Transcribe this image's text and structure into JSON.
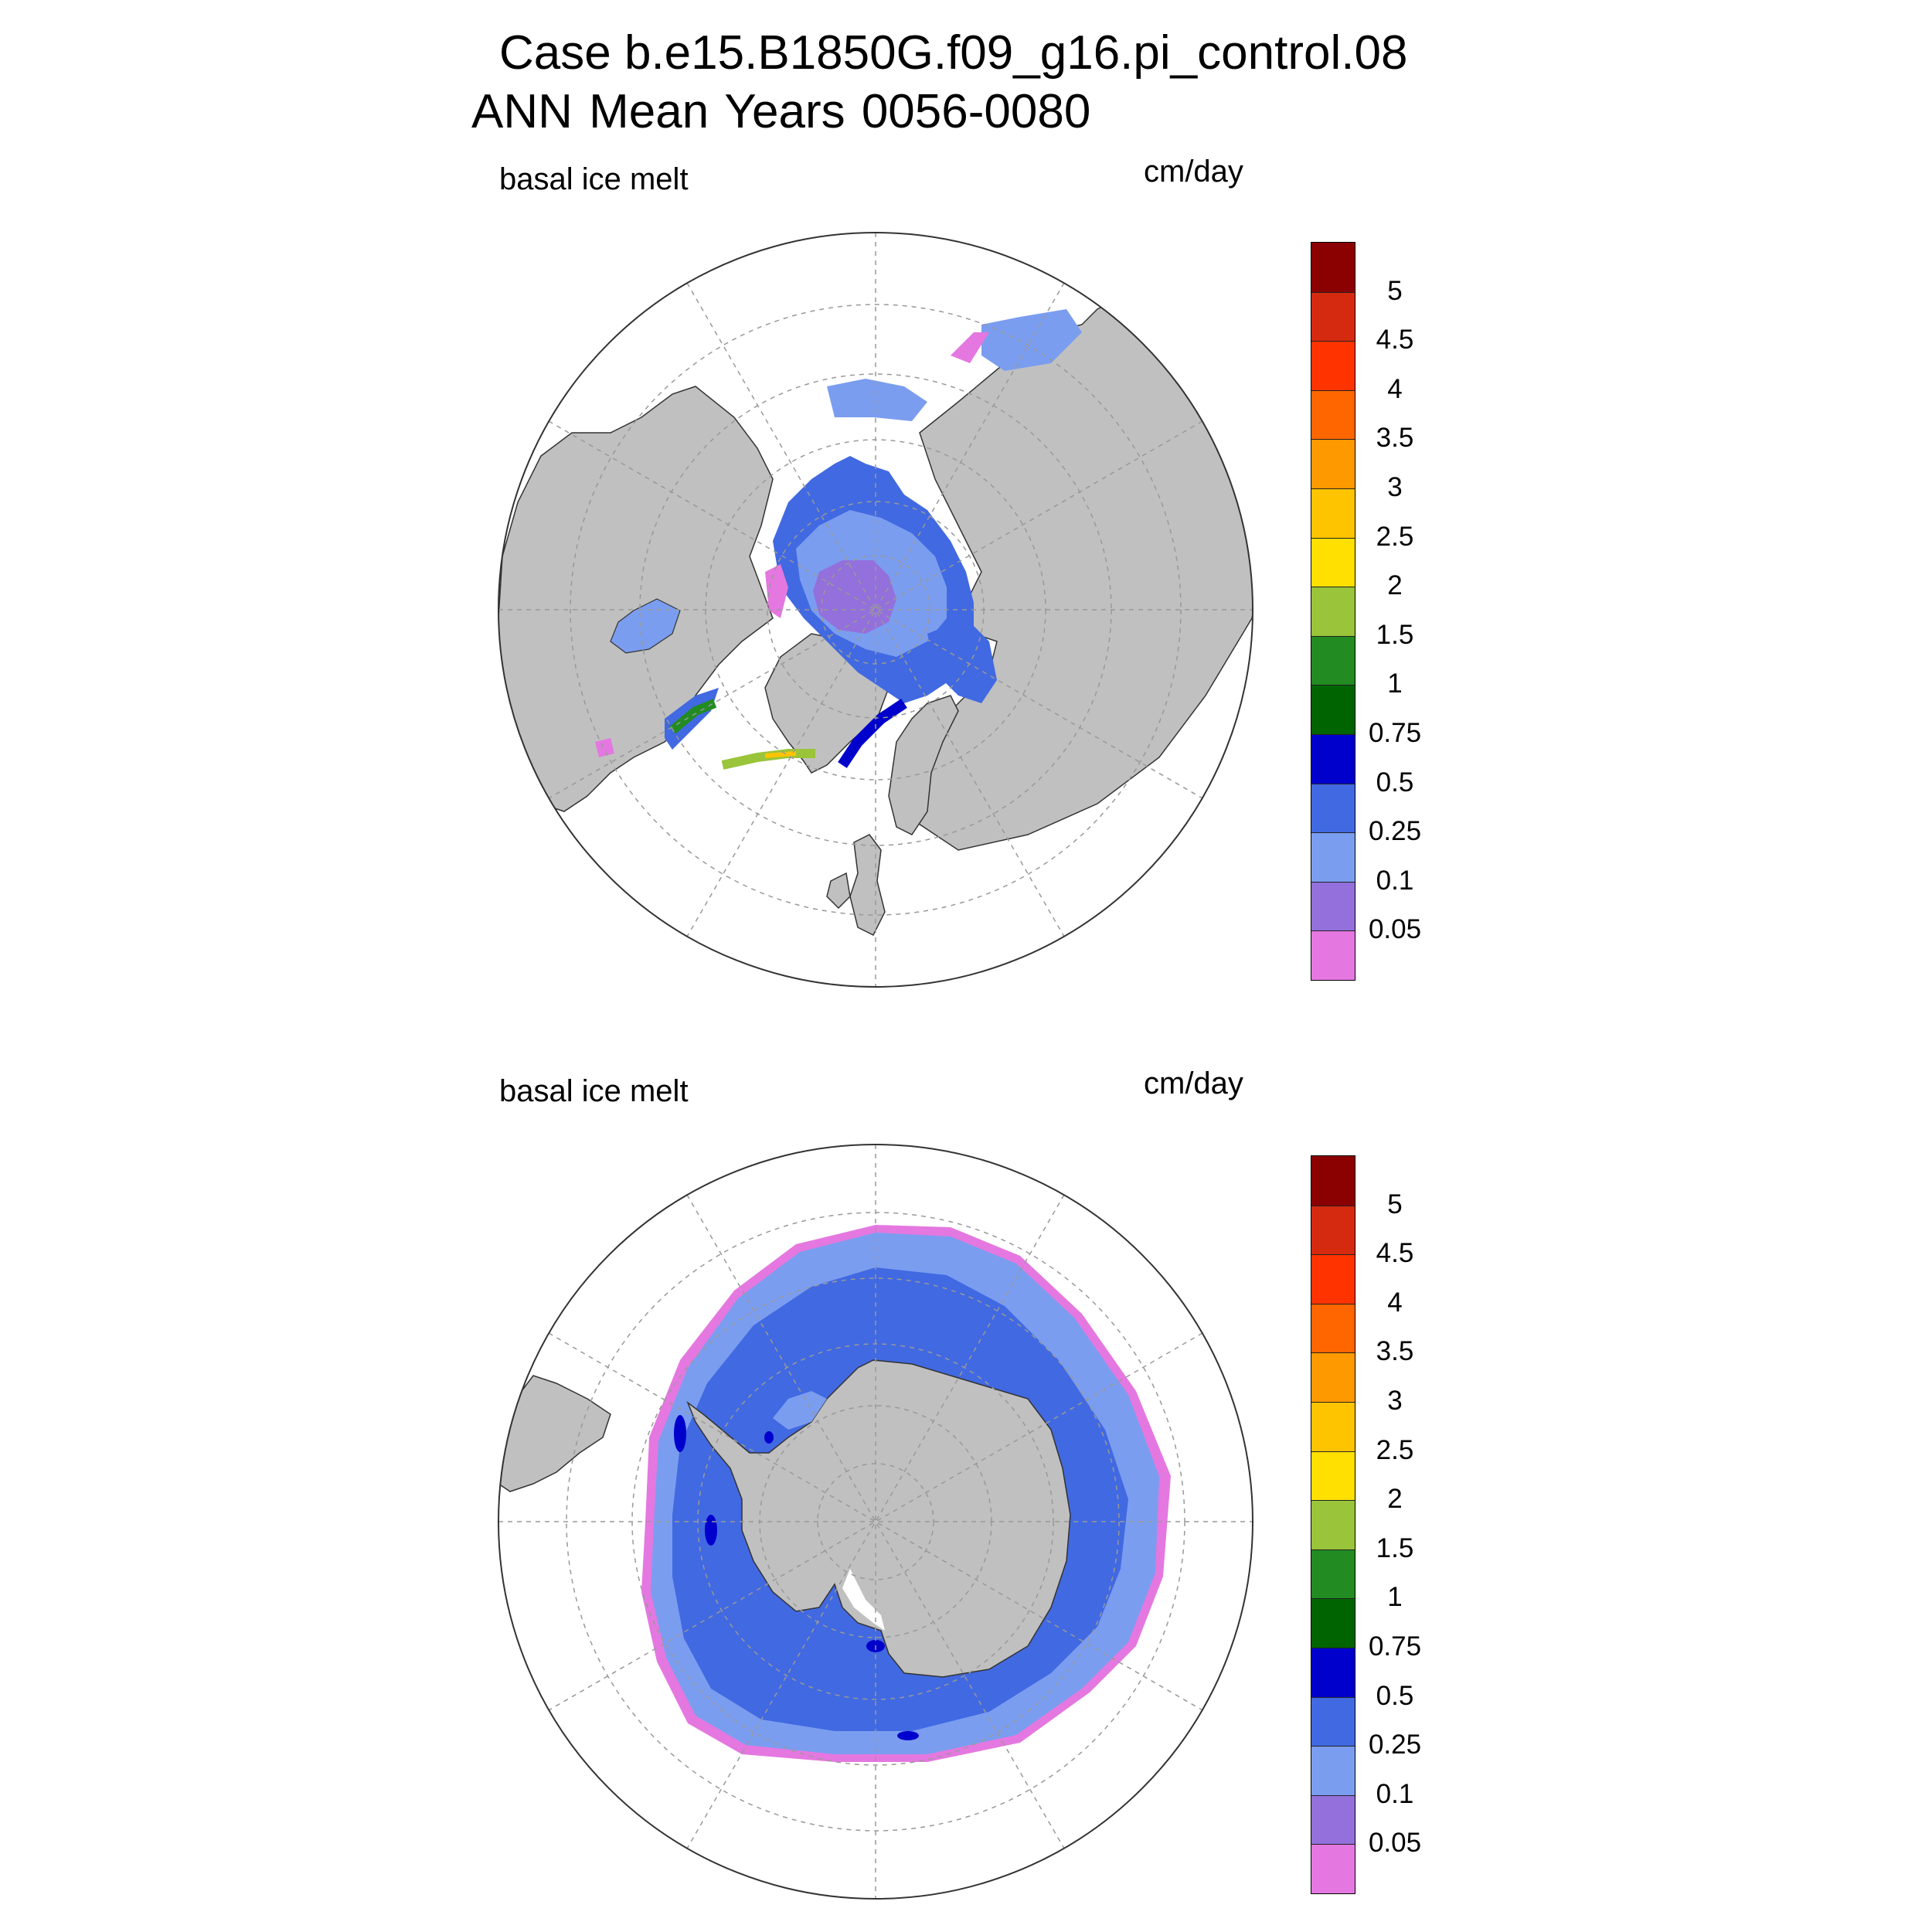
{
  "title": {
    "line1": "Case b.e15.B1850G.f09_g16.pi_control.08",
    "line2": "ANN Mean    Years 0056-0080"
  },
  "panels": [
    {
      "id": "north",
      "left_label": "basal ice melt",
      "right_label": "cm/day"
    },
    {
      "id": "south",
      "left_label": "basal ice melt",
      "right_label": "cm/day"
    }
  ],
  "colorbar": {
    "labels": [
      "5",
      "4.5",
      "4",
      "3.5",
      "3",
      "2.5",
      "2",
      "1.5",
      "1",
      "0.75",
      "0.5",
      "0.25",
      "0.1",
      "0.05"
    ],
    "colors": [
      "#8b0000",
      "#d52a10",
      "#ff3300",
      "#ff6600",
      "#ff9900",
      "#ffc400",
      "#ffe000",
      "#9ac43a",
      "#228b22",
      "#006400",
      "#0000cd",
      "#4169e1",
      "#7b9df0",
      "#9370db",
      "#e478e0"
    ]
  },
  "colors": {
    "land": "#c0c0c0",
    "grid": "#999999"
  }
}
